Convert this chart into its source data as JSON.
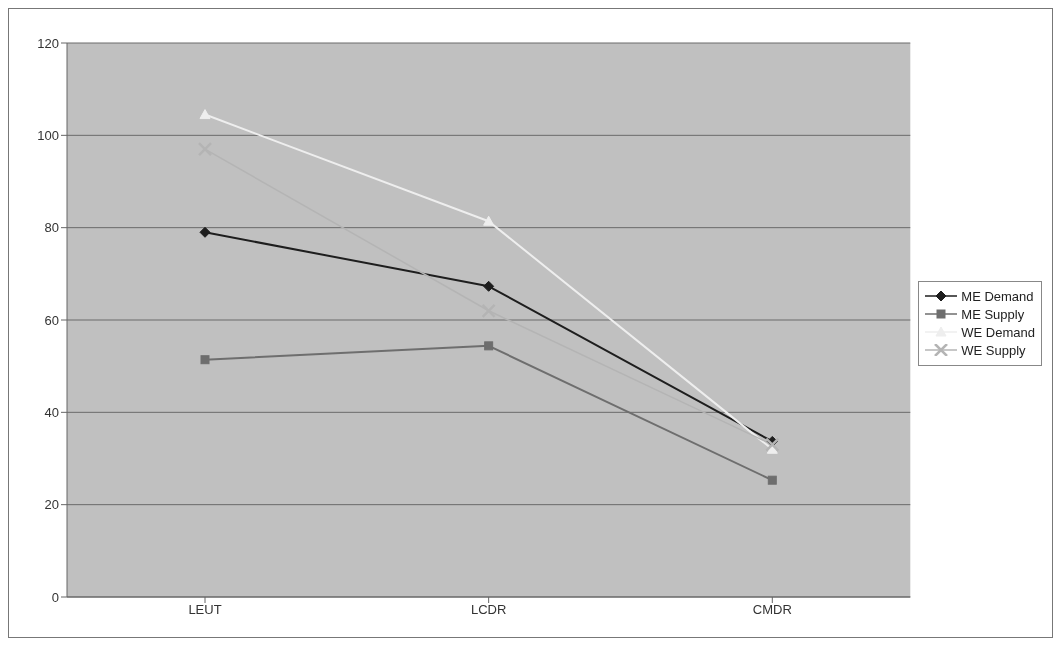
{
  "chart_data": {
    "type": "line",
    "categories": [
      "LEUT",
      "LCDR",
      "CMDR"
    ],
    "series": [
      {
        "name": "ME Demand",
        "color": "#1e1e1e",
        "values": [
          79,
          67.3,
          33.7
        ],
        "marker": "diamond"
      },
      {
        "name": "ME Supply",
        "color": "#6e6e6e",
        "values": [
          51.4,
          54.4,
          25.3
        ],
        "marker": "square"
      },
      {
        "name": "WE Demand",
        "color": "#eeeeee",
        "values": [
          104.5,
          81.4,
          32
        ],
        "marker": "triangle"
      },
      {
        "name": "WE Supply",
        "color": "#b4b4b4",
        "values": [
          97,
          62,
          33
        ],
        "marker": "cross"
      }
    ],
    "ylim": [
      0,
      120
    ],
    "yticks": [
      0,
      20,
      40,
      60,
      80,
      100,
      120
    ],
    "grid": "y",
    "legend": "right"
  }
}
